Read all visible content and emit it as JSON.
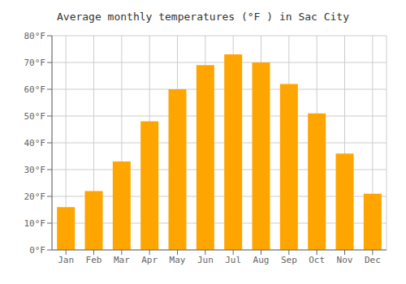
{
  "chart_data": {
    "type": "bar",
    "title": "Average monthly temperatures (°F ) in Sac City",
    "categories": [
      "Jan",
      "Feb",
      "Mar",
      "Apr",
      "May",
      "Jun",
      "Jul",
      "Aug",
      "Sep",
      "Oct",
      "Nov",
      "Dec"
    ],
    "values": [
      16,
      22,
      33,
      48,
      60,
      69,
      73,
      70,
      62,
      51,
      36,
      21
    ],
    "color": "#FFA500",
    "ylim": [
      0,
      80
    ],
    "yticks": [
      {
        "value": 0,
        "label": "0°F"
      },
      {
        "value": 10,
        "label": "10°F"
      },
      {
        "value": 20,
        "label": "20°F"
      },
      {
        "value": 30,
        "label": "30°F"
      },
      {
        "value": 40,
        "label": "40°F"
      },
      {
        "value": 50,
        "label": "50°F"
      },
      {
        "value": 60,
        "label": "60°F"
      },
      {
        "value": 70,
        "label": "70°F"
      },
      {
        "value": 80,
        "label": "80°F"
      }
    ],
    "grid": true
  }
}
